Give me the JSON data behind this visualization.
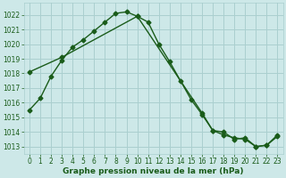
{
  "title": "Graphe pression niveau de la mer (hPa)",
  "bg_color": "#cde8e8",
  "grid_color": "#aacfcf",
  "line_color": "#1a5c1a",
  "marker": "D",
  "markersize": 2.5,
  "linewidth": 1.0,
  "xlim": [
    -0.5,
    23.5
  ],
  "ylim": [
    1012.5,
    1022.8
  ],
  "yticks": [
    1013,
    1014,
    1015,
    1016,
    1017,
    1018,
    1019,
    1020,
    1021,
    1022
  ],
  "xticks": [
    0,
    1,
    2,
    3,
    4,
    5,
    6,
    7,
    8,
    9,
    10,
    11,
    12,
    13,
    14,
    15,
    16,
    17,
    18,
    19,
    20,
    21,
    22,
    23
  ],
  "line1_x": [
    0,
    1,
    2,
    3,
    4,
    5,
    6,
    7,
    8,
    9,
    10,
    11,
    12,
    13,
    14,
    15,
    16,
    17,
    18,
    19,
    20,
    21,
    22,
    23
  ],
  "line1_y": [
    1015.5,
    1016.3,
    1017.8,
    1018.9,
    1019.8,
    1020.3,
    1020.9,
    1021.5,
    1022.1,
    1022.2,
    1021.9,
    1021.5,
    1020.0,
    1018.8,
    1017.5,
    1016.2,
    1015.2,
    1014.1,
    1013.8,
    1013.6,
    1013.5,
    1013.0,
    1013.1,
    1013.7
  ],
  "line2_x": [
    0,
    3,
    10,
    16,
    17,
    18,
    19,
    20,
    21,
    22,
    23
  ],
  "line2_y": [
    1018.1,
    1019.1,
    1021.9,
    1015.3,
    1014.1,
    1014.0,
    1013.5,
    1013.6,
    1013.0,
    1013.1,
    1013.8
  ],
  "tick_fontsize": 5.5,
  "title_fontsize": 6.5
}
